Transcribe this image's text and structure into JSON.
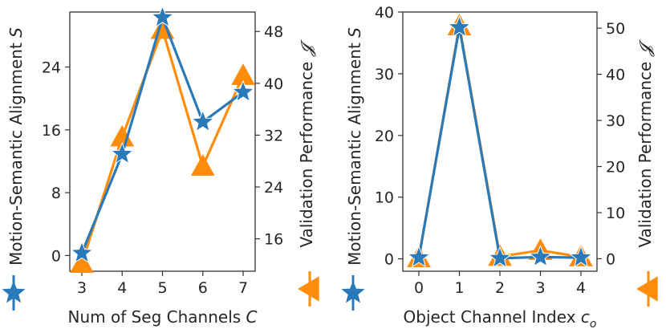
{
  "colors": {
    "alignment": "#2a7ab9",
    "performance": "#ff8c0a",
    "axis": "#333333"
  },
  "chart_data": [
    {
      "type": "line",
      "x": [
        3,
        4,
        5,
        6,
        7
      ],
      "xlabel": "Num of Seg Channels ",
      "xlabel_var": "C",
      "xticks": [
        "3",
        "4",
        "5",
        "6",
        "7"
      ],
      "ylabel_left": "Motion-Semantic Alignment ",
      "ylabel_left_var": "S",
      "ylabel_right": "Validation Performance ",
      "ylabel_right_var": "𝓙",
      "ylim_left": [
        -2,
        31
      ],
      "yticks_left": [
        0,
        8,
        16,
        24
      ],
      "ylim_right": [
        11,
        51
      ],
      "yticks_right": [
        16,
        24,
        32,
        40,
        48
      ],
      "series": [
        {
          "axis": "left",
          "marker": "star",
          "values": [
            0.3,
            12.9,
            30.3,
            17.0,
            20.8
          ]
        },
        {
          "axis": "right",
          "marker": "triangle",
          "values": [
            12.2,
            31.7,
            48.3,
            27.2,
            41.2
          ]
        }
      ]
    },
    {
      "type": "line",
      "x": [
        0,
        1,
        2,
        3,
        4
      ],
      "xlabel": "Object Channel Index ",
      "xlabel_var": "c",
      "xlabel_sub": "o",
      "xticks": [
        "0",
        "1",
        "2",
        "3",
        "4"
      ],
      "ylabel_left": "Motion-Semantic Alignment ",
      "ylabel_left_var": "S",
      "ylabel_right": "Validation Performance ",
      "ylabel_right_var": "𝓙",
      "ylim_left": [
        -2,
        40
      ],
      "yticks_left": [
        0,
        10,
        20,
        30,
        40
      ],
      "ylim_right": [
        -2.7,
        53.5
      ],
      "yticks_right": [
        0,
        10,
        20,
        30,
        40,
        50
      ],
      "series": [
        {
          "axis": "left",
          "marker": "star",
          "values": [
            0.2,
            37.5,
            0.1,
            0.3,
            0.2
          ]
        },
        {
          "axis": "right",
          "marker": "triangle",
          "values": [
            0.2,
            50.5,
            0.5,
            1.8,
            0.4
          ]
        }
      ]
    }
  ]
}
